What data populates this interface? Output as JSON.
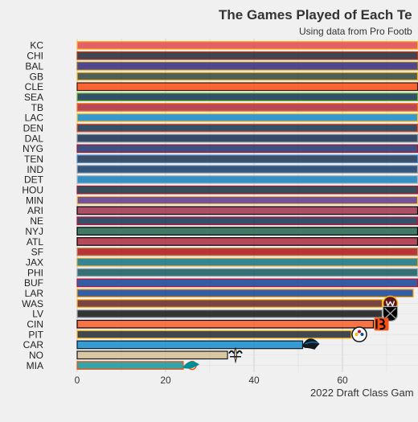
{
  "chart_data": {
    "type": "bar",
    "orientation": "horizontal",
    "title": "The Games Played of Each Te",
    "subtitle": "Using data from Pro Footb",
    "xlabel": "2022 Draft Class Gam",
    "xlim": [
      0,
      77
    ],
    "xticks": [
      0,
      20,
      40,
      60
    ],
    "grid": true,
    "categories": [
      "KC",
      "CHI",
      "BAL",
      "GB",
      "CLE",
      "SEA",
      "TB",
      "LAC",
      "DEN",
      "DAL",
      "NYG",
      "TEN",
      "IND",
      "DET",
      "HOU",
      "MIN",
      "ARI",
      "NE",
      "NYJ",
      "ATL",
      "SF",
      "JAX",
      "PHI",
      "BUF",
      "LAR",
      "WAS",
      "LV",
      "CIN",
      "PIT",
      "CAR",
      "NO",
      "MIA"
    ],
    "values": [
      77,
      77,
      77,
      77,
      77,
      77,
      77,
      77,
      77,
      77,
      77,
      77,
      77,
      77,
      77,
      77,
      77,
      77,
      77,
      77,
      77,
      77,
      77,
      77,
      76,
      69,
      69,
      67,
      62,
      51,
      34,
      24
    ],
    "colors": [
      "#e03a3e",
      "#0b162a",
      "#241773",
      "#203731",
      "#ff3c00",
      "#002244",
      "#a71930",
      "#0080c6",
      "#002244",
      "#041e42",
      "#0b2265",
      "#0c2340",
      "#002c5f",
      "#0076b6",
      "#03202f",
      "#4f2683",
      "#97233f",
      "#002244",
      "#125740",
      "#a71930",
      "#aa0000",
      "#006778",
      "#004c54",
      "#00338d",
      "#003594",
      "#5a1414",
      "#000000",
      "#fb4f14",
      "#101820",
      "#0085ca",
      "#d3bc8d",
      "#008e97"
    ],
    "borders": [
      "#ffb612",
      "#c83803",
      "#9e7c0c",
      "#ffb612",
      "#311d00",
      "#69be28",
      "#ff7900",
      "#ffc20e",
      "#fb4f14",
      "#869397",
      "#a71930",
      "#4b92db",
      "#a2aaad",
      "#b0b7bc",
      "#a71930",
      "#ffc62f",
      "#000000",
      "#c60c30",
      "#000000",
      "#000000",
      "#b3995d",
      "#d7a22a",
      "#a5acaf",
      "#c60c30",
      "#ffa300",
      "#ffb612",
      "#a5acaf",
      "#000000",
      "#ffb612",
      "#101820",
      "#101820",
      "#fc4c02"
    ],
    "logos": {
      "LAR": "rams-logo-icon",
      "WAS": "commanders-logo-icon",
      "LV": "raiders-logo-icon",
      "CIN": "bengals-logo-icon",
      "PIT": "steelers-logo-icon",
      "CAR": "panthers-logo-icon",
      "NO": "saints-logo-icon",
      "MIA": "dolphins-logo-icon"
    }
  }
}
